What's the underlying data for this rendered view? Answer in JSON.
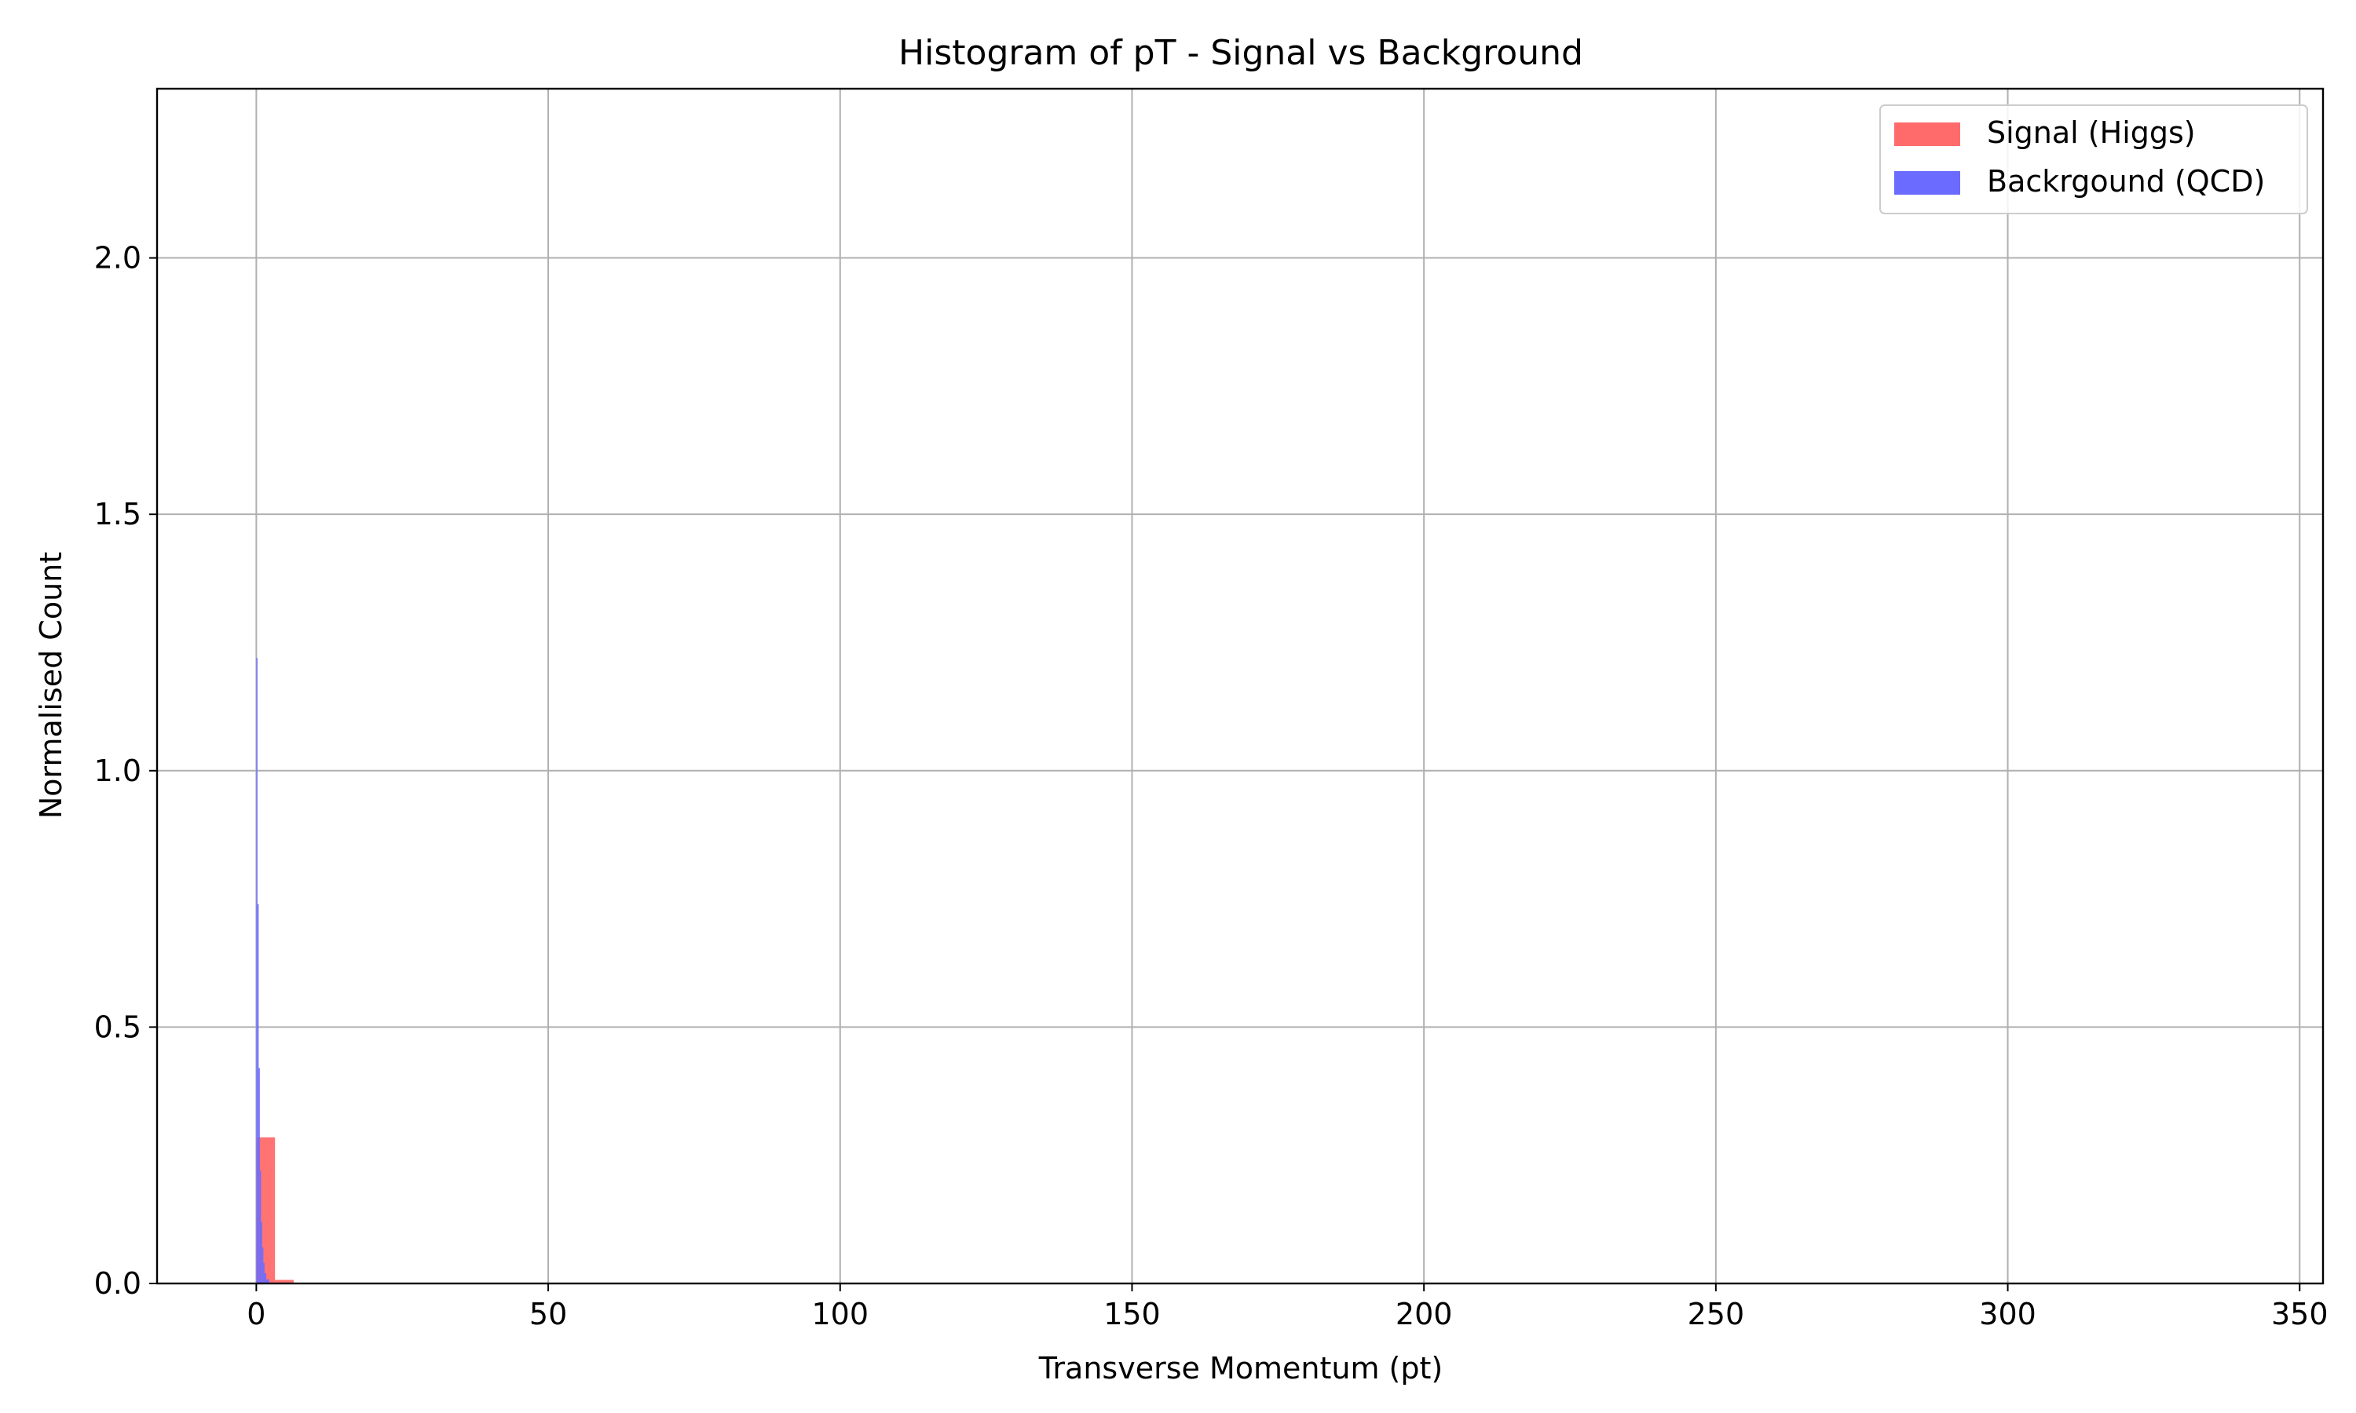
{
  "chart_data": {
    "type": "bar",
    "title": "Histogram of pT - Signal vs Background",
    "xlabel": "Transverse Momentum (pt)",
    "ylabel": "Normalised Count",
    "xlim": [
      -17,
      354
    ],
    "ylim": [
      0,
      2.33
    ],
    "xticks": [
      0,
      50,
      100,
      150,
      200,
      250,
      300,
      350
    ],
    "xtick_labels": [
      "0",
      "50",
      "100",
      "150",
      "200",
      "250",
      "300",
      "350"
    ],
    "yticks": [
      0.0,
      0.5,
      1.0,
      1.5,
      2.0
    ],
    "ytick_labels": [
      "0.0",
      "0.5",
      "1.0",
      "1.5",
      "2.0"
    ],
    "grid": true,
    "legend_position": "top-right",
    "series": [
      {
        "name": "Signal (Higgs)",
        "color": "#ff6b6b",
        "bins": [
          {
            "x0": 0.0,
            "x1": 3.2,
            "value": 0.285
          },
          {
            "x0": 3.2,
            "x1": 6.4,
            "value": 0.007
          }
        ]
      },
      {
        "name": "Backrgound (QCD)",
        "color": "#6b6bff",
        "bins": [
          {
            "x0": 0.0,
            "x1": 0.2,
            "value": 1.22
          },
          {
            "x0": 0.2,
            "x1": 0.4,
            "value": 0.74
          },
          {
            "x0": 0.4,
            "x1": 0.6,
            "value": 0.42
          },
          {
            "x0": 0.6,
            "x1": 0.8,
            "value": 0.22
          },
          {
            "x0": 0.8,
            "x1": 1.0,
            "value": 0.12
          },
          {
            "x0": 1.0,
            "x1": 1.2,
            "value": 0.07
          },
          {
            "x0": 1.2,
            "x1": 1.4,
            "value": 0.04
          },
          {
            "x0": 1.4,
            "x1": 1.7,
            "value": 0.02
          },
          {
            "x0": 1.7,
            "x1": 2.2,
            "value": 0.008
          }
        ]
      }
    ]
  }
}
